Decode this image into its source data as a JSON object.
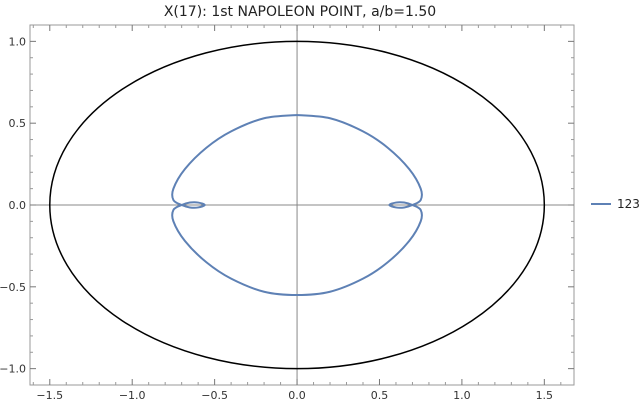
{
  "chart_data": {
    "type": "line",
    "title": "X(17): 1st NAPOLEON POINT, a/b=1.50",
    "xlim": [
      -1.62,
      1.68
    ],
    "ylim": [
      -1.1,
      1.1
    ],
    "xticks": [
      -1.5,
      -1.0,
      -0.5,
      0.0,
      0.5,
      1.0,
      1.5
    ],
    "xtick_labels": [
      "−1.5",
      "−1.0",
      "−0.5",
      "0.0",
      "0.5",
      "1.0",
      "1.5"
    ],
    "yticks": [
      -1.0,
      -0.5,
      0.0,
      0.5,
      1.0
    ],
    "ytick_labels": [
      "−1.0",
      "−0.5",
      "0.0",
      "0.5",
      "1.0"
    ],
    "grid": false,
    "axes_through_origin": true,
    "legend_placement": "right",
    "series": [
      {
        "role": "ellipse",
        "color": "#000000",
        "semi_axes": {
          "a": 1.5,
          "b": 1.0
        }
      },
      {
        "role": "locus",
        "name": "123",
        "color": "#5E81B5",
        "points": [
          [
            0.0,
            0.55
          ],
          [
            0.2,
            0.53
          ],
          [
            0.4,
            0.45
          ],
          [
            0.55,
            0.35
          ],
          [
            0.68,
            0.22
          ],
          [
            0.75,
            0.1
          ],
          [
            0.75,
            0.03
          ],
          [
            0.7,
            0.0
          ],
          [
            0.65,
            -0.015
          ],
          [
            0.6,
            -0.015
          ],
          [
            0.56,
            0.0
          ],
          [
            0.6,
            0.015
          ],
          [
            0.65,
            0.015
          ],
          [
            0.7,
            0.0
          ],
          [
            0.75,
            -0.03
          ],
          [
            0.75,
            -0.1
          ],
          [
            0.68,
            -0.22
          ],
          [
            0.55,
            -0.35
          ],
          [
            0.4,
            -0.45
          ],
          [
            0.2,
            -0.53
          ],
          [
            0.0,
            -0.55
          ],
          [
            -0.2,
            -0.53
          ],
          [
            -0.4,
            -0.45
          ],
          [
            -0.55,
            -0.35
          ],
          [
            -0.68,
            -0.22
          ],
          [
            -0.75,
            -0.1
          ],
          [
            -0.75,
            -0.03
          ],
          [
            -0.7,
            0.0
          ],
          [
            -0.65,
            0.015
          ],
          [
            -0.6,
            0.015
          ],
          [
            -0.56,
            0.0
          ],
          [
            -0.6,
            -0.015
          ],
          [
            -0.65,
            -0.015
          ],
          [
            -0.7,
            0.0
          ],
          [
            -0.75,
            0.03
          ],
          [
            -0.75,
            0.1
          ],
          [
            -0.68,
            0.22
          ],
          [
            -0.55,
            0.35
          ],
          [
            -0.4,
            0.45
          ],
          [
            -0.2,
            0.53
          ],
          [
            0.0,
            0.55
          ]
        ]
      }
    ]
  }
}
